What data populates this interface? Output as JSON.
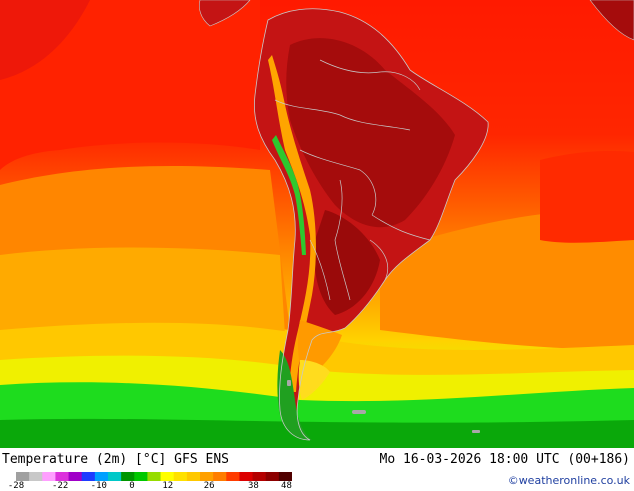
{
  "title": "Temperature (2m) [°C] GFS ENS",
  "timestamp": "Mo 16-03-2026 18:00 UTC (00+186)",
  "credit": "©weatheronline.co.uk",
  "legend": {
    "ticks": [
      "-28",
      "-22",
      "-10",
      "0",
      "12",
      "26",
      "38",
      "48"
    ],
    "colors": [
      "#a0a0a0",
      "#c8c8c8",
      "#ff9fff",
      "#dc32dc",
      "#a000c8",
      "#1e3cff",
      "#00a0ff",
      "#00c8c8",
      "#009600",
      "#00c800",
      "#96dc00",
      "#ffff00",
      "#ffe100",
      "#ffc800",
      "#ffa000",
      "#ff7d00",
      "#ff3c00",
      "#dc0000",
      "#b40000",
      "#8c0000",
      "#500000"
    ]
  },
  "map": {
    "region": "South America",
    "colors": {
      "ocean_warm": "#ff1e00",
      "land_hot": "#b40f0f",
      "orange": "#ff8c00",
      "yellow": "#ffd700",
      "green": "#18c818",
      "deep_green": "#08a008",
      "borders": "#c8c8c8"
    }
  }
}
